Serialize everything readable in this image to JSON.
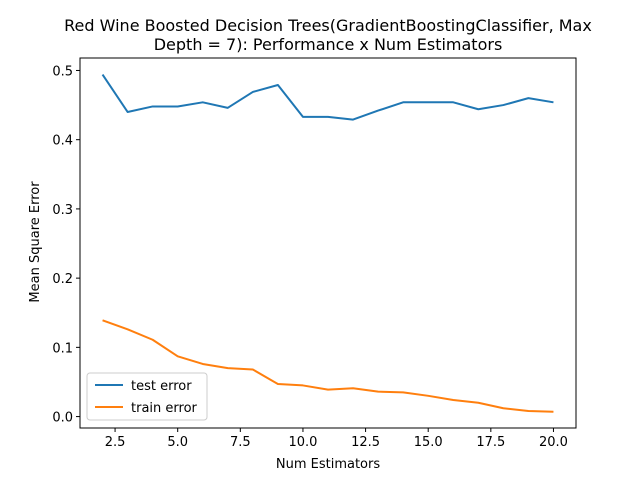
{
  "chart_data": {
    "type": "line",
    "title_lines": [
      "Red Wine Boosted Decision Trees(GradientBoostingClassifier, Max",
      "Depth = 7): Performance x Num Estimators"
    ],
    "xlabel": "Num Estimators",
    "ylabel": "Mean Square Error",
    "xlim": [
      1.1,
      20.9
    ],
    "ylim": [
      -0.0165,
      0.518
    ],
    "xticks": [
      2.5,
      5.0,
      7.5,
      10.0,
      12.5,
      15.0,
      17.5,
      20.0
    ],
    "xtick_labels": [
      "2.5",
      "5.0",
      "7.5",
      "10.0",
      "12.5",
      "15.0",
      "17.5",
      "20.0"
    ],
    "yticks": [
      0.0,
      0.1,
      0.2,
      0.3,
      0.4,
      0.5
    ],
    "ytick_labels": [
      "0.0",
      "0.1",
      "0.2",
      "0.3",
      "0.4",
      "0.5"
    ],
    "grid": false,
    "legend_position": "lower-left",
    "x": [
      2,
      3,
      4,
      5,
      6,
      7,
      8,
      9,
      10,
      11,
      12,
      13,
      14,
      15,
      16,
      17,
      18,
      19,
      20
    ],
    "series": [
      {
        "name": "test error",
        "color": "#1f77b4",
        "values": [
          0.494,
          0.44,
          0.448,
          0.448,
          0.454,
          0.446,
          0.469,
          0.479,
          0.433,
          0.433,
          0.429,
          0.442,
          0.454,
          0.454,
          0.454,
          0.444,
          0.45,
          0.46,
          0.454
        ]
      },
      {
        "name": "train error",
        "color": "#ff7f0e",
        "values": [
          0.139,
          0.126,
          0.111,
          0.087,
          0.076,
          0.07,
          0.068,
          0.047,
          0.045,
          0.039,
          0.041,
          0.036,
          0.035,
          0.03,
          0.024,
          0.02,
          0.012,
          0.008,
          0.007
        ]
      }
    ]
  }
}
